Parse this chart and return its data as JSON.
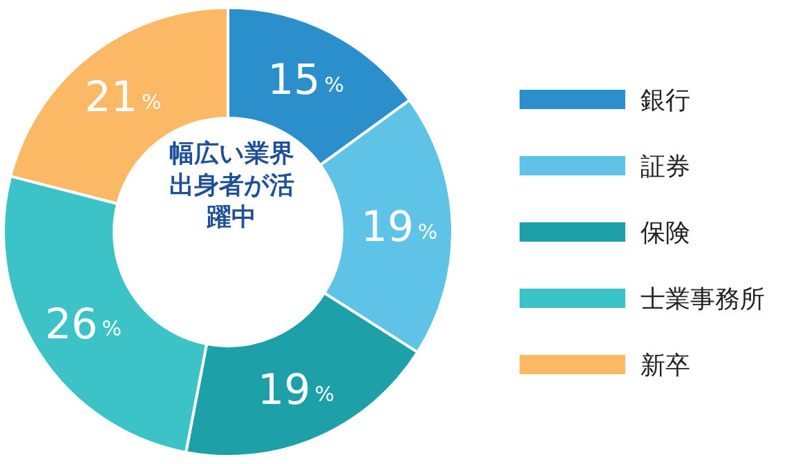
{
  "chart_data": {
    "type": "donut",
    "title": "幅広い業界出身者が活躍中",
    "categories": [
      "銀行",
      "証券",
      "保険",
      "士業事務所",
      "新卒"
    ],
    "values": [
      15,
      19,
      19,
      26,
      21
    ],
    "colors": [
      "#2a8fcb",
      "#5ec3e6",
      "#1ea0a8",
      "#3cc3c8",
      "#fbb966"
    ],
    "value_labels": [
      "15%",
      "19%",
      "19%",
      "26%",
      "21%"
    ],
    "legend": "right"
  }
}
